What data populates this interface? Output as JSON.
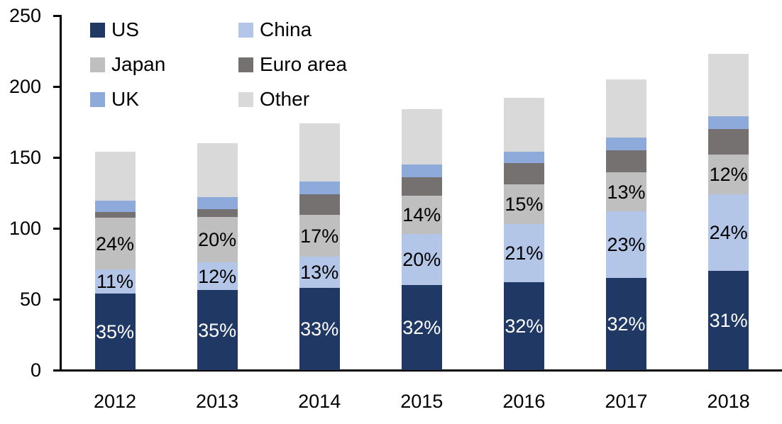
{
  "chart_data": {
    "type": "bar",
    "stacked": true,
    "title": "",
    "xlabel": "",
    "ylabel": "",
    "ylim": [
      0,
      250
    ],
    "grid": false,
    "legend_position": "top-left",
    "categories": [
      "2012",
      "2013",
      "2014",
      "2015",
      "2016",
      "2017",
      "2018"
    ],
    "series": [
      {
        "name": "US",
        "color": "#1f3864",
        "values": [
          54,
          56.5,
          58,
          60,
          62,
          65,
          70
        ],
        "labels": [
          "35%",
          "35%",
          "33%",
          "32%",
          "32%",
          "32%",
          "31%"
        ],
        "label_color": "#ffffff"
      },
      {
        "name": "China",
        "color": "#b4c6e7",
        "values": [
          17,
          19.5,
          22,
          36,
          41,
          47,
          54
        ],
        "labels": [
          "11%",
          "12%",
          "13%",
          "20%",
          "21%",
          "23%",
          "24%"
        ],
        "label_color": "#000000"
      },
      {
        "name": "Japan",
        "color": "#bfbfbf",
        "values": [
          36.5,
          32,
          29.5,
          27,
          28,
          27.5,
          28
        ],
        "labels": [
          "24%",
          "20%",
          "17%",
          "14%",
          "15%",
          "13%",
          "12%"
        ],
        "label_color": "#000000"
      },
      {
        "name": "Euro area",
        "color": "#767171",
        "values": [
          4,
          5.5,
          14.5,
          13,
          15,
          15.5,
          18
        ],
        "labels": null,
        "label_color": null
      },
      {
        "name": "UK",
        "color": "#8eaadb",
        "values": [
          8,
          8.5,
          9,
          9,
          8,
          9,
          9
        ],
        "labels": null,
        "label_color": null
      },
      {
        "name": "Other",
        "color": "#d9d9d9",
        "values": [
          34.5,
          38,
          41,
          39,
          38,
          41,
          44
        ],
        "labels": null,
        "label_color": null
      }
    ],
    "totals": [
      154,
      160,
      174,
      184,
      192,
      205,
      223
    ],
    "yticks": [
      {
        "value": 0,
        "label": "0"
      },
      {
        "value": 50,
        "label": "50"
      },
      {
        "value": 100,
        "label": "100"
      },
      {
        "value": 150,
        "label": "150"
      },
      {
        "value": 200,
        "label": "200"
      },
      {
        "value": 250,
        "label": "250"
      }
    ],
    "colors": {
      "axis": "#000000",
      "text": "#000000",
      "background": "#ffffff"
    }
  }
}
